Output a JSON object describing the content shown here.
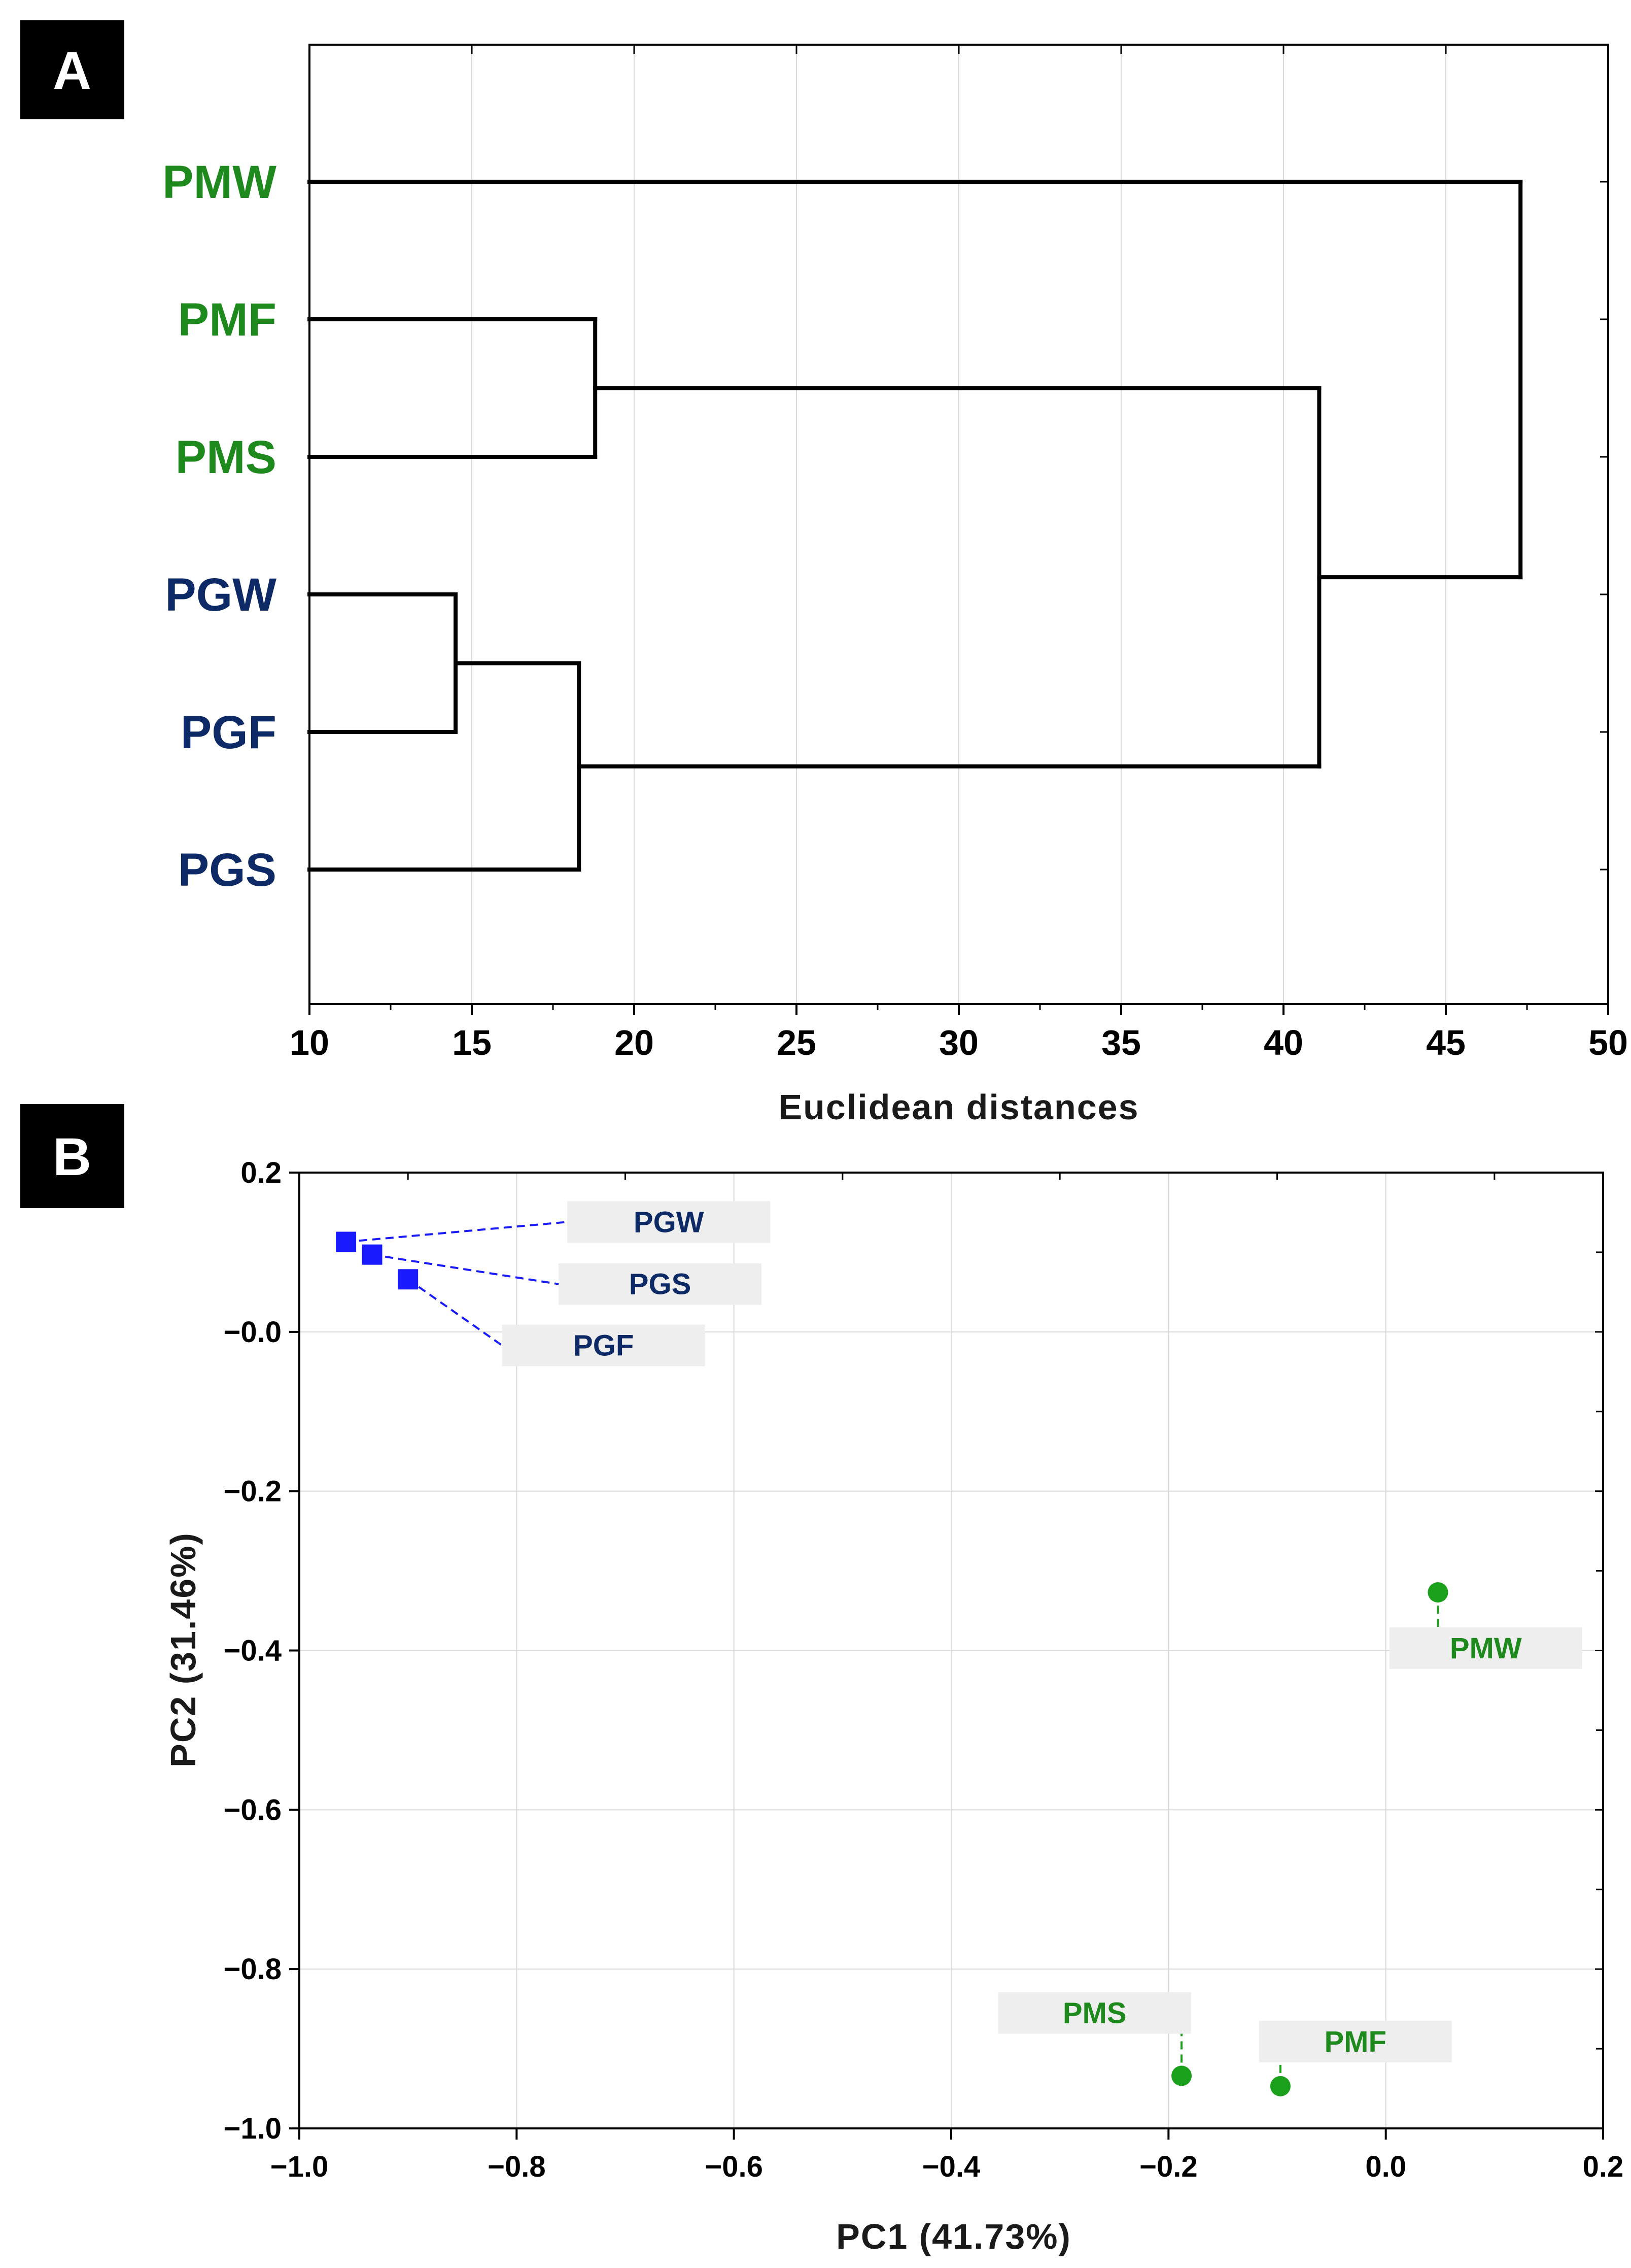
{
  "panels": {
    "a_label": "A",
    "b_label": "B"
  },
  "colors": {
    "group_PG": "#0d2a66",
    "group_PM": "#1e8a1e",
    "marker_PG": "#1a1aff",
    "marker_PM": "#1aa01a",
    "label_box": "#eeeeee",
    "grid": "#d9d9d9"
  },
  "chart_data": [
    {
      "type": "dendrogram",
      "panel": "A",
      "leaves": [
        {
          "name": "PMW",
          "group": "PM"
        },
        {
          "name": "PMF",
          "group": "PM"
        },
        {
          "name": "PMS",
          "group": "PM"
        },
        {
          "name": "PGW",
          "group": "PG"
        },
        {
          "name": "PGF",
          "group": "PG"
        },
        {
          "name": "PGS",
          "group": "PG"
        }
      ],
      "merges": [
        {
          "id": "m1",
          "children": [
            "PGW",
            "PGF"
          ],
          "height": 14.5
        },
        {
          "id": "m2",
          "children": [
            "m1",
            "PGS"
          ],
          "height": 18.3
        },
        {
          "id": "m3",
          "children": [
            "PMF",
            "PMS"
          ],
          "height": 18.8
        },
        {
          "id": "m4",
          "children": [
            "m3",
            "m2"
          ],
          "height": 41.1
        },
        {
          "id": "m5",
          "children": [
            "PMW",
            "m4"
          ],
          "height": 47.3
        }
      ],
      "xlim": [
        10,
        50
      ],
      "xticks": [
        10,
        15,
        20,
        25,
        30,
        35,
        40,
        45,
        50
      ],
      "xtick_labels": [
        "10",
        "15",
        "20",
        "25",
        "30",
        "35",
        "40",
        "45",
        "50"
      ],
      "xlabel": "Euclidean distances",
      "grid": true
    },
    {
      "type": "scatter",
      "panel": "B",
      "xlabel": "PC1 (41.73%)",
      "ylabel": "PC2 (31.46%)",
      "xlim": [
        -1.0,
        0.2
      ],
      "ylim": [
        -1.0,
        0.2
      ],
      "xticks": [
        -1.0,
        -0.8,
        -0.6,
        -0.4,
        -0.2,
        0.0,
        0.2
      ],
      "xtick_labels": [
        "−1.0",
        "−0.8",
        "−0.6",
        "−0.4",
        "−0.2",
        "0.0",
        "0.2"
      ],
      "yticks": [
        0.2,
        -0.0,
        -0.2,
        -0.4,
        -0.6,
        -0.8,
        -1.0
      ],
      "ytick_labels": [
        "0.2",
        "−0.0",
        "−0.2",
        "−0.4",
        "−0.6",
        "−0.8",
        "−1.0"
      ],
      "grid": true,
      "points": [
        {
          "name": "PGW",
          "group": "PG",
          "marker": "square",
          "x": -0.957,
          "y": 0.113,
          "label_x": -0.66,
          "label_y": 0.138
        },
        {
          "name": "PGS",
          "group": "PG",
          "marker": "square",
          "x": -0.933,
          "y": 0.097,
          "label_x": -0.668,
          "label_y": 0.06
        },
        {
          "name": "PGF",
          "group": "PG",
          "marker": "square",
          "x": -0.9,
          "y": 0.066,
          "label_x": -0.72,
          "label_y": -0.017
        },
        {
          "name": "PMW",
          "group": "PM",
          "marker": "circle",
          "x": 0.048,
          "y": -0.327,
          "label_x": 0.092,
          "label_y": -0.397
        },
        {
          "name": "PMS",
          "group": "PM",
          "marker": "circle",
          "x": -0.188,
          "y": -0.934,
          "label_x": -0.268,
          "label_y": -0.855
        },
        {
          "name": "PMF",
          "group": "PM",
          "marker": "circle",
          "x": -0.097,
          "y": -0.947,
          "label_x": -0.028,
          "label_y": -0.891
        }
      ]
    }
  ]
}
